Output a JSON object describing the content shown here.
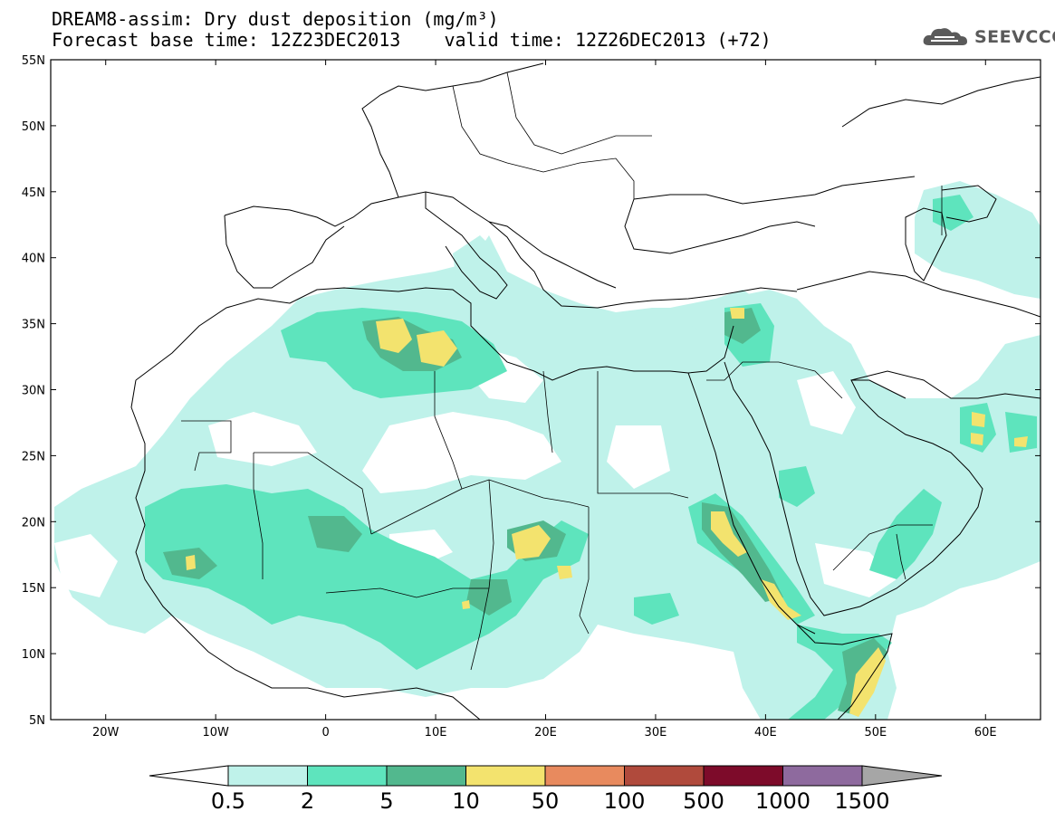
{
  "header": {
    "title_line1": "DREAM8-assim: Dry dust deposition (mg/m³)",
    "title_line2": "Forecast base time: 12Z23DEC2013    valid time: 12Z26DEC2013 (+72)"
  },
  "logo": {
    "text": "SEEVCCC",
    "icon": "cloud-icon"
  },
  "map": {
    "lat_labels": [
      "55N",
      "50N",
      "45N",
      "40N",
      "35N",
      "30N",
      "25N",
      "20N",
      "15N",
      "10N",
      "5N"
    ],
    "lon_labels": [
      "20W",
      "10W",
      "0",
      "10E",
      "20E",
      "30E",
      "40E",
      "50E",
      "60E"
    ],
    "lon_range": [
      -25,
      65
    ],
    "lat_range": [
      5,
      55
    ]
  },
  "colorbar": {
    "labels": [
      "0.5",
      "2",
      "5",
      "10",
      "50",
      "100",
      "500",
      "1000",
      "1500"
    ],
    "colors": [
      "#bff2ea",
      "#5ee4bd",
      "#52b88e",
      "#f3e36e",
      "#e88a5e",
      "#b04a3c",
      "#7d0b2a",
      "#8e6a9e"
    ],
    "under_color": "#ffffff",
    "over_color": "#a6a6a6"
  },
  "palette": {
    "land_outline": "#000000",
    "dust_light": "#bff2ea",
    "dust_2": "#5ee4bd",
    "dust_5": "#52b88e",
    "dust_10": "#f3e36e"
  }
}
